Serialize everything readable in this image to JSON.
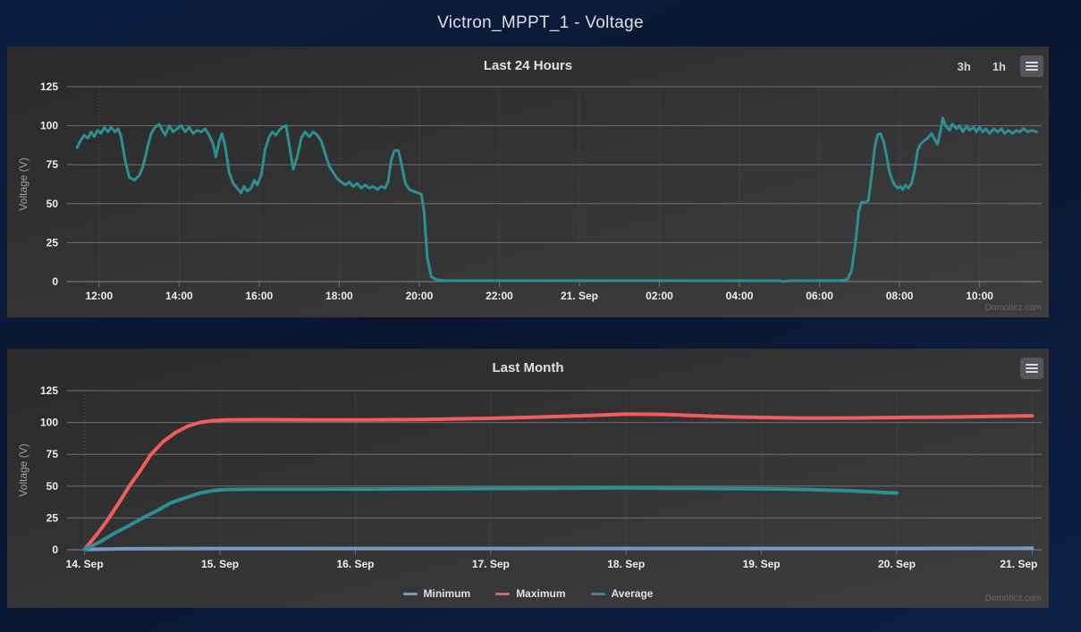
{
  "page_title": "Victron_MPPT_1 - Voltage",
  "charts_ui": {
    "range_buttons": [
      "3h",
      "1h"
    ],
    "credits": "Domoticz.com"
  },
  "colors": {
    "teal": "#2b908f",
    "red": "#f45b5b",
    "blue": "#7798bf",
    "grid_h": "#707073",
    "grid_v": "#5c5c60",
    "axis_line": "#85858a"
  },
  "chart_data": [
    {
      "type": "line",
      "title": "Last 24 Hours",
      "ylabel": "Voltage (V)",
      "y_range": [
        0,
        125
      ],
      "y_ticks": [
        0,
        25,
        50,
        75,
        100,
        125
      ],
      "x_unit": "hours since 20 Sep 00:00 (24+ = 21 Sep)",
      "x_range": [
        11.2,
        35.55
      ],
      "x_ticks": [
        {
          "v": 12,
          "label": "12:00"
        },
        {
          "v": 14,
          "label": "14:00"
        },
        {
          "v": 16,
          "label": "16:00"
        },
        {
          "v": 18,
          "label": "18:00"
        },
        {
          "v": 20,
          "label": "20:00"
        },
        {
          "v": 22,
          "label": "22:00"
        },
        {
          "v": 24,
          "label": "21. Sep"
        },
        {
          "v": 26,
          "label": "02:00"
        },
        {
          "v": 28,
          "label": "04:00"
        },
        {
          "v": 30,
          "label": "06:00"
        },
        {
          "v": 32,
          "label": "08:00"
        },
        {
          "v": 34,
          "label": "10:00"
        }
      ],
      "legend": null,
      "series": [
        {
          "name": "Voltage",
          "key": "voltage",
          "color": "#2b908f",
          "width": 3,
          "points": [
            [
              11.45,
              86
            ],
            [
              11.55,
              91
            ],
            [
              11.63,
              94
            ],
            [
              11.72,
              92
            ],
            [
              11.8,
              96
            ],
            [
              11.88,
              93
            ],
            [
              11.96,
              97
            ],
            [
              12.05,
              95
            ],
            [
              12.13,
              99
            ],
            [
              12.22,
              96
            ],
            [
              12.3,
              99
            ],
            [
              12.4,
              96
            ],
            [
              12.48,
              98
            ],
            [
              12.55,
              93
            ],
            [
              12.65,
              78
            ],
            [
              12.75,
              67
            ],
            [
              12.88,
              65
            ],
            [
              13.0,
              68
            ],
            [
              13.1,
              74
            ],
            [
              13.2,
              85
            ],
            [
              13.3,
              95
            ],
            [
              13.4,
              99
            ],
            [
              13.5,
              101
            ],
            [
              13.58,
              97
            ],
            [
              13.65,
              94
            ],
            [
              13.75,
              100
            ],
            [
              13.85,
              96
            ],
            [
              13.95,
              98
            ],
            [
              14.05,
              100
            ],
            [
              14.15,
              96
            ],
            [
              14.25,
              99
            ],
            [
              14.35,
              95
            ],
            [
              14.45,
              97
            ],
            [
              14.55,
              96
            ],
            [
              14.65,
              98
            ],
            [
              14.75,
              94
            ],
            [
              14.85,
              88
            ],
            [
              14.92,
              80
            ],
            [
              15.0,
              90
            ],
            [
              15.07,
              95
            ],
            [
              15.15,
              87
            ],
            [
              15.25,
              70
            ],
            [
              15.35,
              63
            ],
            [
              15.45,
              60
            ],
            [
              15.55,
              57
            ],
            [
              15.62,
              61
            ],
            [
              15.7,
              58
            ],
            [
              15.8,
              60
            ],
            [
              15.88,
              65
            ],
            [
              15.95,
              62
            ],
            [
              16.05,
              68
            ],
            [
              16.15,
              85
            ],
            [
              16.25,
              93
            ],
            [
              16.33,
              96
            ],
            [
              16.42,
              94
            ],
            [
              16.5,
              97
            ],
            [
              16.58,
              99
            ],
            [
              16.67,
              100
            ],
            [
              16.75,
              88
            ],
            [
              16.85,
              72
            ],
            [
              16.95,
              80
            ],
            [
              17.05,
              92
            ],
            [
              17.15,
              96
            ],
            [
              17.25,
              93
            ],
            [
              17.35,
              96
            ],
            [
              17.45,
              94
            ],
            [
              17.55,
              90
            ],
            [
              17.65,
              82
            ],
            [
              17.75,
              74
            ],
            [
              17.85,
              70
            ],
            [
              17.95,
              66
            ],
            [
              18.05,
              64
            ],
            [
              18.15,
              62
            ],
            [
              18.25,
              64
            ],
            [
              18.35,
              61
            ],
            [
              18.45,
              63
            ],
            [
              18.55,
              60
            ],
            [
              18.65,
              62
            ],
            [
              18.75,
              60
            ],
            [
              18.85,
              61
            ],
            [
              18.95,
              59
            ],
            [
              19.05,
              61
            ],
            [
              19.15,
              60
            ],
            [
              19.22,
              64
            ],
            [
              19.3,
              78
            ],
            [
              19.38,
              84
            ],
            [
              19.48,
              84
            ],
            [
              19.55,
              76
            ],
            [
              19.65,
              63
            ],
            [
              19.75,
              59
            ],
            [
              19.85,
              58
            ],
            [
              19.95,
              57
            ],
            [
              20.05,
              56
            ],
            [
              20.12,
              45
            ],
            [
              20.2,
              15
            ],
            [
              20.3,
              3
            ],
            [
              20.45,
              1
            ],
            [
              20.7,
              0.6
            ],
            [
              21.5,
              0.6
            ],
            [
              22.5,
              0.6
            ],
            [
              23.5,
              0.6
            ],
            [
              24.5,
              0.6
            ],
            [
              25.5,
              0.6
            ],
            [
              26.5,
              0.6
            ],
            [
              27.5,
              0.6
            ],
            [
              28.5,
              0.6
            ],
            [
              29.0,
              0.6
            ],
            [
              29.12,
              0.1
            ],
            [
              29.25,
              0.6
            ],
            [
              30.0,
              0.6
            ],
            [
              30.55,
              0.7
            ],
            [
              30.7,
              1.5
            ],
            [
              30.8,
              7
            ],
            [
              30.9,
              25
            ],
            [
              30.98,
              45
            ],
            [
              31.05,
              51
            ],
            [
              31.15,
              51
            ],
            [
              31.22,
              52
            ],
            [
              31.3,
              68
            ],
            [
              31.38,
              86
            ],
            [
              31.45,
              94
            ],
            [
              31.52,
              95
            ],
            [
              31.6,
              90
            ],
            [
              31.68,
              80
            ],
            [
              31.75,
              70
            ],
            [
              31.85,
              63
            ],
            [
              31.95,
              60
            ],
            [
              32.02,
              61
            ],
            [
              32.08,
              59
            ],
            [
              32.15,
              62
            ],
            [
              32.22,
              60
            ],
            [
              32.3,
              63
            ],
            [
              32.38,
              72
            ],
            [
              32.45,
              84
            ],
            [
              32.52,
              88
            ],
            [
              32.6,
              90
            ],
            [
              32.7,
              92
            ],
            [
              32.8,
              95
            ],
            [
              32.88,
              91
            ],
            [
              32.95,
              88
            ],
            [
              33.02,
              96
            ],
            [
              33.08,
              105
            ],
            [
              33.15,
              100
            ],
            [
              33.25,
              97
            ],
            [
              33.32,
              101
            ],
            [
              33.42,
              98
            ],
            [
              33.5,
              100
            ],
            [
              33.58,
              96
            ],
            [
              33.68,
              100
            ],
            [
              33.75,
              97
            ],
            [
              33.85,
              99
            ],
            [
              33.92,
              96
            ],
            [
              34.0,
              99
            ],
            [
              34.08,
              96
            ],
            [
              34.15,
              98
            ],
            [
              34.25,
              95
            ],
            [
              34.35,
              98
            ],
            [
              34.45,
              96
            ],
            [
              34.55,
              98
            ],
            [
              34.62,
              95
            ],
            [
              34.72,
              97
            ],
            [
              34.82,
              95
            ],
            [
              34.92,
              97
            ],
            [
              35.0,
              96
            ],
            [
              35.1,
              98
            ],
            [
              35.2,
              96
            ],
            [
              35.3,
              97
            ],
            [
              35.42,
              96
            ]
          ]
        }
      ]
    },
    {
      "type": "line",
      "title": "Last Month",
      "ylabel": "Voltage (V)",
      "y_range": [
        0,
        125
      ],
      "y_ticks": [
        0,
        25,
        50,
        75,
        100,
        125
      ],
      "x_unit": "day of September",
      "x_range": [
        13.87,
        21.07
      ],
      "x_ticks": [
        {
          "v": 14,
          "label": "14. Sep"
        },
        {
          "v": 15,
          "label": "15. Sep"
        },
        {
          "v": 16,
          "label": "16. Sep"
        },
        {
          "v": 17,
          "label": "17. Sep"
        },
        {
          "v": 18,
          "label": "18. Sep"
        },
        {
          "v": 19,
          "label": "19. Sep"
        },
        {
          "v": 20,
          "label": "20. Sep"
        },
        {
          "v": 21,
          "label": "21. Sep",
          "align": "end"
        }
      ],
      "legend": [
        {
          "name": "Minimum",
          "color": "#7798bf"
        },
        {
          "name": "Maximum",
          "color": "#f45b5b"
        },
        {
          "name": "Average",
          "color": "#2b908f"
        }
      ],
      "series": [
        {
          "name": "Minimum",
          "key": "minimum",
          "color": "#7798bf",
          "width": 4,
          "points": [
            [
              14.0,
              0.3
            ],
            [
              14.3,
              0.8
            ],
            [
              15,
              1
            ],
            [
              16,
              1
            ],
            [
              17,
              1
            ],
            [
              18,
              1
            ],
            [
              19,
              1
            ],
            [
              20,
              1
            ],
            [
              21,
              1.2
            ]
          ]
        },
        {
          "name": "Maximum",
          "key": "maximum",
          "color": "#f45b5b",
          "width": 4,
          "points": [
            [
              14.0,
              0.5
            ],
            [
              14.09,
              12
            ],
            [
              14.18,
              25
            ],
            [
              14.26,
              38
            ],
            [
              14.33,
              50
            ],
            [
              14.41,
              62
            ],
            [
              14.49,
              75
            ],
            [
              14.58,
              85
            ],
            [
              14.67,
              92
            ],
            [
              14.76,
              97
            ],
            [
              14.85,
              100
            ],
            [
              14.95,
              101.5
            ],
            [
              15.05,
              102
            ],
            [
              15.3,
              102.2
            ],
            [
              15.7,
              102
            ],
            [
              16.1,
              102
            ],
            [
              16.5,
              102.4
            ],
            [
              17.0,
              103.2
            ],
            [
              17.33,
              104.2
            ],
            [
              17.67,
              105.3
            ],
            [
              18.0,
              106.5
            ],
            [
              18.25,
              106.4
            ],
            [
              18.5,
              105.4
            ],
            [
              18.75,
              104.5
            ],
            [
              19.0,
              103.9
            ],
            [
              19.33,
              103.4
            ],
            [
              19.67,
              103.5
            ],
            [
              20.0,
              103.9
            ],
            [
              20.33,
              104.2
            ],
            [
              20.67,
              104.7
            ],
            [
              21.0,
              105.3
            ]
          ]
        },
        {
          "name": "Average",
          "key": "average",
          "color": "#2b908f",
          "width": 4,
          "points": [
            [
              14.0,
              0.3
            ],
            [
              14.11,
              6
            ],
            [
              14.22,
              13
            ],
            [
              14.33,
              19
            ],
            [
              14.43,
              25
            ],
            [
              14.54,
              31
            ],
            [
              14.64,
              37
            ],
            [
              14.75,
              41
            ],
            [
              14.85,
              44.5
            ],
            [
              14.95,
              46.5
            ],
            [
              15.05,
              47.3
            ],
            [
              15.3,
              47.6
            ],
            [
              15.7,
              47.6
            ],
            [
              16.1,
              47.7
            ],
            [
              16.5,
              47.9
            ],
            [
              17.0,
              48.1
            ],
            [
              17.5,
              48.3
            ],
            [
              18.0,
              48.6
            ],
            [
              18.33,
              48.3
            ],
            [
              18.67,
              48.1
            ],
            [
              19.0,
              47.9
            ],
            [
              19.33,
              47.3
            ],
            [
              19.67,
              46.3
            ],
            [
              20.0,
              44.5
            ]
          ]
        }
      ]
    }
  ]
}
